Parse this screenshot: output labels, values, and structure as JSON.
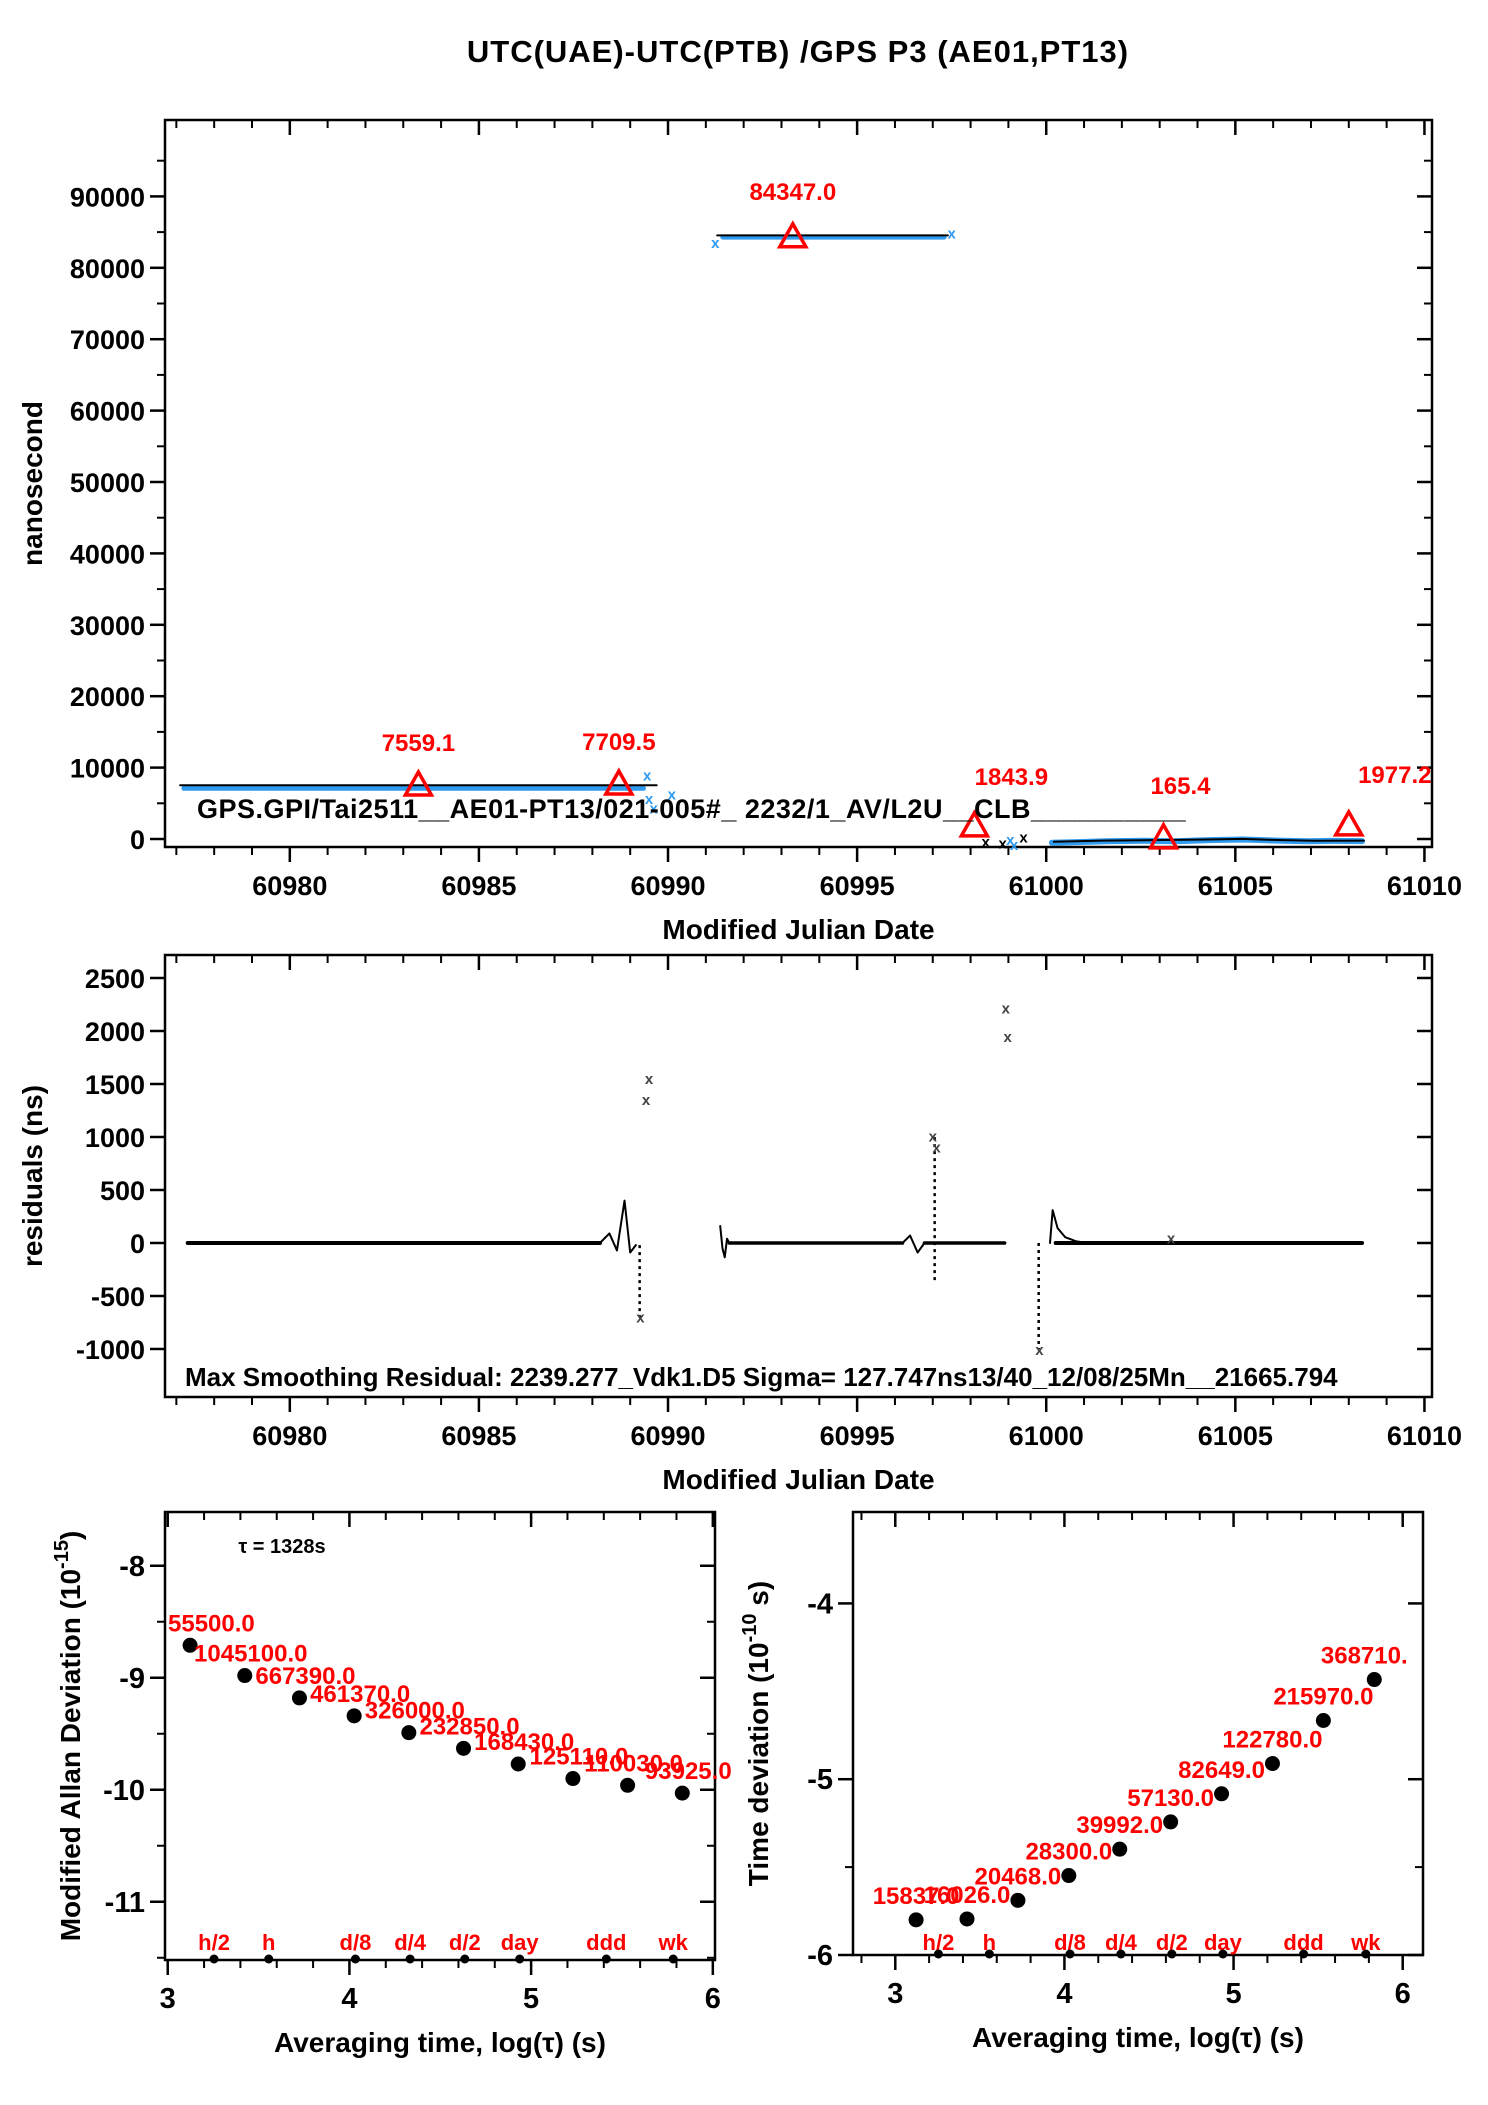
{
  "colors": {
    "data_blue": "#2e9af0",
    "accent_red": "#ff0000",
    "ink": "#000000",
    "grey_mark": "#555555"
  },
  "chart_data": [
    {
      "id": "top",
      "type": "line",
      "title": "UTC(UAE)-UTC(PTB)  /GPS  P3  (AE01,PT13)",
      "xlabel": "Modified Julian Date",
      "ylabel": "nanosecond",
      "xlim": [
        60976.7,
        61010.2
      ],
      "ylim": [
        -1120,
        100700
      ],
      "xticks": [
        60980,
        60985,
        60990,
        60995,
        61000,
        61005,
        61010
      ],
      "yticks": [
        0,
        10000,
        20000,
        30000,
        40000,
        50000,
        60000,
        70000,
        80000,
        90000
      ],
      "annotation": "GPS.GPI/Tai2511__AE01-PT13/021-005#_ 2232/1_AV/L2U__CLB__________",
      "triangles": [
        {
          "mjd": 60983.4,
          "value": 7559.1,
          "label": "7559.1"
        },
        {
          "mjd": 60988.7,
          "value": 7709.5,
          "label": "7709.5"
        },
        {
          "mjd": 60993.3,
          "value": 84347.0,
          "label": "84347.0"
        },
        {
          "mjd": 60998.1,
          "value": 1843.9,
          "label": "1843.9"
        },
        {
          "mjd": 61003.1,
          "value": 165.4,
          "label": "165.4"
        },
        {
          "mjd": 61008.0,
          "value": 1977.2,
          "label": "1977.2"
        }
      ],
      "series": [
        {
          "name": "raw-left",
          "color": "blue",
          "width": 5,
          "points": [
            [
              60977.2,
              7100
            ],
            [
              60989.35,
              7100
            ]
          ]
        },
        {
          "name": "smooth-left",
          "color": "black",
          "width": 2,
          "points": [
            [
              60977.1,
              7520
            ],
            [
              60989.7,
              7520
            ]
          ]
        },
        {
          "name": "raw-mid",
          "color": "blue",
          "width": 5,
          "points": [
            [
              60991.45,
              84300
            ],
            [
              60997.3,
              84300
            ]
          ]
        },
        {
          "name": "smooth-mid",
          "color": "black",
          "width": 2,
          "points": [
            [
              60991.3,
              84540
            ],
            [
              60997.4,
              84540
            ]
          ]
        },
        {
          "name": "raw-right",
          "color": "blue",
          "width": 6,
          "points": [
            [
              61000.15,
              -520
            ],
            [
              61000.8,
              -430
            ],
            [
              61001.6,
              -310
            ],
            [
              61002.6,
              -240
            ],
            [
              61003.4,
              -310
            ],
            [
              61004.3,
              -150
            ],
            [
              61005.2,
              -70
            ],
            [
              61006.0,
              -210
            ],
            [
              61006.9,
              -310
            ],
            [
              61007.6,
              -270
            ],
            [
              61008.35,
              -290
            ]
          ]
        },
        {
          "name": "smooth-right",
          "color": "black",
          "width": 2,
          "points": [
            [
              61000.2,
              -380
            ],
            [
              61001.5,
              -230
            ],
            [
              61002.8,
              -160
            ],
            [
              61004.3,
              -70
            ],
            [
              61005.2,
              10
            ],
            [
              61006.1,
              -140
            ],
            [
              61007.1,
              -240
            ],
            [
              61008.4,
              -230
            ]
          ]
        }
      ],
      "scatter": [
        [
          60989.5,
          5600,
          "blue"
        ],
        [
          60989.62,
          4300,
          "blue"
        ],
        [
          60989.45,
          8900,
          "blue"
        ],
        [
          60990.1,
          6200,
          "blue"
        ],
        [
          60991.25,
          83500,
          "blue"
        ],
        [
          60997.5,
          84800,
          "blue"
        ],
        [
          60998.4,
          -420,
          "black"
        ],
        [
          60998.85,
          -600,
          "black"
        ],
        [
          60999.05,
          -150,
          "blue"
        ],
        [
          60999.15,
          -850,
          "blue"
        ],
        [
          60999.4,
          180,
          "black"
        ]
      ]
    },
    {
      "id": "residuals",
      "type": "line",
      "xlabel": "Modified Julian Date",
      "ylabel": "residuals (ns)",
      "xlim": [
        60976.7,
        61010.2
      ],
      "ylim": [
        -1453,
        2717
      ],
      "xticks": [
        60980,
        60985,
        60990,
        60995,
        61000,
        61005,
        61010
      ],
      "yticks": [
        -1000,
        -500,
        0,
        500,
        1000,
        1500,
        2000,
        2500
      ],
      "note": "Max Smoothing Residual: 2239.277_Vdk1.D5  Sigma= 127.747ns13/40_12/08/25Mn__21665.794",
      "series": [
        {
          "name": "baseline-1",
          "color": "black",
          "width": 4,
          "points": [
            [
              60977.3,
              0
            ],
            [
              60988.2,
              0
            ]
          ]
        },
        {
          "name": "wiggle-60988",
          "color": "black",
          "width": 2,
          "points": [
            [
              60988.2,
              0
            ],
            [
              60988.45,
              90
            ],
            [
              60988.65,
              -70
            ],
            [
              60988.85,
              400
            ],
            [
              60989.0,
              -90
            ],
            [
              60989.15,
              -20
            ]
          ]
        },
        {
          "name": "cluster-60991",
          "color": "black",
          "width": 2,
          "points": [
            [
              60991.38,
              160
            ],
            [
              60991.44,
              -50
            ],
            [
              60991.5,
              -135
            ],
            [
              60991.56,
              40
            ],
            [
              60991.62,
              0
            ]
          ]
        },
        {
          "name": "baseline-2",
          "color": "black",
          "width": 3.5,
          "points": [
            [
              60991.62,
              0
            ],
            [
              60996.2,
              0
            ]
          ]
        },
        {
          "name": "bump-60996",
          "color": "black",
          "width": 2,
          "points": [
            [
              60996.2,
              0
            ],
            [
              60996.4,
              70
            ],
            [
              60996.6,
              -90
            ],
            [
              60996.78,
              0
            ]
          ]
        },
        {
          "name": "baseline-2b",
          "color": "black",
          "width": 3.5,
          "points": [
            [
              60996.78,
              0
            ],
            [
              60998.9,
              0
            ]
          ]
        },
        {
          "name": "spike-61000",
          "color": "black",
          "width": 2,
          "points": [
            [
              61000.1,
              0
            ],
            [
              61000.17,
              310
            ],
            [
              61000.3,
              140
            ],
            [
              61000.5,
              55
            ],
            [
              61000.8,
              15
            ],
            [
              61001.1,
              0
            ]
          ]
        },
        {
          "name": "baseline-3",
          "color": "black",
          "width": 4,
          "points": [
            [
              61000.25,
              0
            ],
            [
              61008.35,
              0
            ]
          ]
        }
      ],
      "columns": [
        {
          "x": 60989.25,
          "y1": -20,
          "y2": -700
        },
        {
          "x": 60997.05,
          "y1": -350,
          "y2": 1000
        },
        {
          "x": 60999.8,
          "y1": 0,
          "y2": -1000
        }
      ],
      "scatter": [
        [
          60989.5,
          1545
        ],
        [
          60989.42,
          1350
        ],
        [
          60998.93,
          2210
        ],
        [
          60998.98,
          1945
        ],
        [
          60997.0,
          1005
        ],
        [
          60997.1,
          900
        ],
        [
          60999.82,
          -1010
        ],
        [
          60989.27,
          -705
        ],
        [
          61003.3,
          40
        ]
      ]
    },
    {
      "id": "mdev",
      "type": "scatter",
      "xlabel": "Averaging time, log(τ) (s)",
      "ylabel_main": "Modified Allan Deviation (10",
      "ylabel_sup": "-15",
      "ylabel_end": ")",
      "tau_note": "τ = 1328s",
      "xlim": [
        2.985,
        6.012
      ],
      "ylim": [
        -11.52,
        -7.52
      ],
      "xticks": [
        3,
        4,
        5,
        6
      ],
      "yticks": [
        -8,
        -9,
        -10,
        -11
      ],
      "x": [
        3.123,
        3.424,
        3.725,
        4.026,
        4.327,
        4.628,
        4.929,
        5.23,
        5.531,
        5.832
      ],
      "y": [
        -8.71,
        -8.98,
        -9.18,
        -9.34,
        -9.49,
        -9.63,
        -9.77,
        -9.9,
        -9.96,
        -10.03
      ],
      "point_labels": [
        "55500.0",
        "1045100.0",
        "667390.0",
        "461370.0",
        "326000.0",
        "232850.0",
        "168430.0",
        "125110.0",
        "110030.0",
        "93925.0"
      ],
      "time_marks": [
        {
          "label": "h/2",
          "log_tau": 3.255
        },
        {
          "label": "h",
          "log_tau": 3.556
        },
        {
          "label": "d/8",
          "log_tau": 4.033
        },
        {
          "label": "d/4",
          "log_tau": 4.334
        },
        {
          "label": "d/2",
          "log_tau": 4.635
        },
        {
          "label": "day",
          "log_tau": 4.937
        },
        {
          "label": "ddd",
          "log_tau": 5.414
        },
        {
          "label": "wk",
          "log_tau": 5.782
        }
      ]
    },
    {
      "id": "tdev",
      "type": "scatter",
      "xlabel": "Averaging time, log(τ) (s)",
      "ylabel_main": "Time deviation (10",
      "ylabel_sup": "-10",
      "ylabel_end": " s)",
      "xlim": [
        2.75,
        6.12
      ],
      "ylim": [
        -6.0,
        -3.48
      ],
      "xticks": [
        3,
        4,
        5,
        6
      ],
      "yticks": [
        -4,
        -5,
        -6
      ],
      "x": [
        3.123,
        3.424,
        3.725,
        4.026,
        4.327,
        4.628,
        4.929,
        5.23,
        5.531,
        5.832
      ],
      "y": [
        -5.8,
        -5.795,
        -5.689,
        -5.548,
        -5.398,
        -5.243,
        -5.083,
        -4.911,
        -4.666,
        -4.433
      ],
      "point_labels": [
        "15837.0",
        "16026.0",
        "20468.0",
        "28300.0",
        "39992.0",
        "57130.0",
        "82649.0",
        "122780.0",
        "215970.0",
        "368710."
      ],
      "time_marks": [
        {
          "label": "h/2",
          "log_tau": 3.255
        },
        {
          "label": "h",
          "log_tau": 3.556
        },
        {
          "label": "d/8",
          "log_tau": 4.033
        },
        {
          "label": "d/4",
          "log_tau": 4.334
        },
        {
          "label": "d/2",
          "log_tau": 4.635
        },
        {
          "label": "day",
          "log_tau": 4.937
        },
        {
          "label": "ddd",
          "log_tau": 5.414
        },
        {
          "label": "wk",
          "log_tau": 5.782
        }
      ]
    }
  ]
}
